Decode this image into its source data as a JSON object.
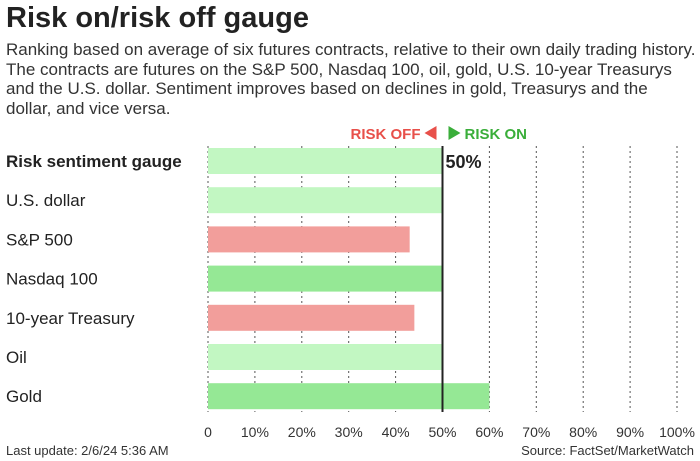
{
  "chart_data": {
    "type": "bar",
    "orientation": "horizontal",
    "title": "Risk on/risk off gauge",
    "subtitle": "Ranking based on average of six futures contracts, relative to their own daily trading history. The contracts are futures on the S&P 500, Nasdaq 100, oil, gold, U.S. 10-year Treasurys and the U.S. dollar. Sentiment improves based on declines in gold, Treasurys and the dollar, and vice versa.",
    "categories": [
      "Risk sentiment gauge",
      "U.S. dollar",
      "S&P 500",
      "Nasdaq 100",
      "10-year Treasury",
      "Oil",
      "Gold"
    ],
    "values": [
      50,
      50,
      43,
      50,
      44,
      50,
      60
    ],
    "bar_colors": [
      "#c2f7c2",
      "#c2f7c2",
      "#f29e9b",
      "#95e895",
      "#f29e9b",
      "#c2f7c2",
      "#95e895"
    ],
    "gauge_label": "50%",
    "risk_off_label": "RISK OFF",
    "risk_on_label": "RISK ON",
    "risk_off_color": "#e8504a",
    "risk_on_color": "#3aae3a",
    "xlim": [
      0,
      100
    ],
    "xticks": [
      "0",
      "10%",
      "20%",
      "30%",
      "40%",
      "50%",
      "60%",
      "70%",
      "80%",
      "90%",
      "100%"
    ],
    "grid": true
  },
  "footer": {
    "last_update": "Last update: 2/6/24 5:36 AM",
    "source": "Source: FactSet/MarketWatch"
  }
}
